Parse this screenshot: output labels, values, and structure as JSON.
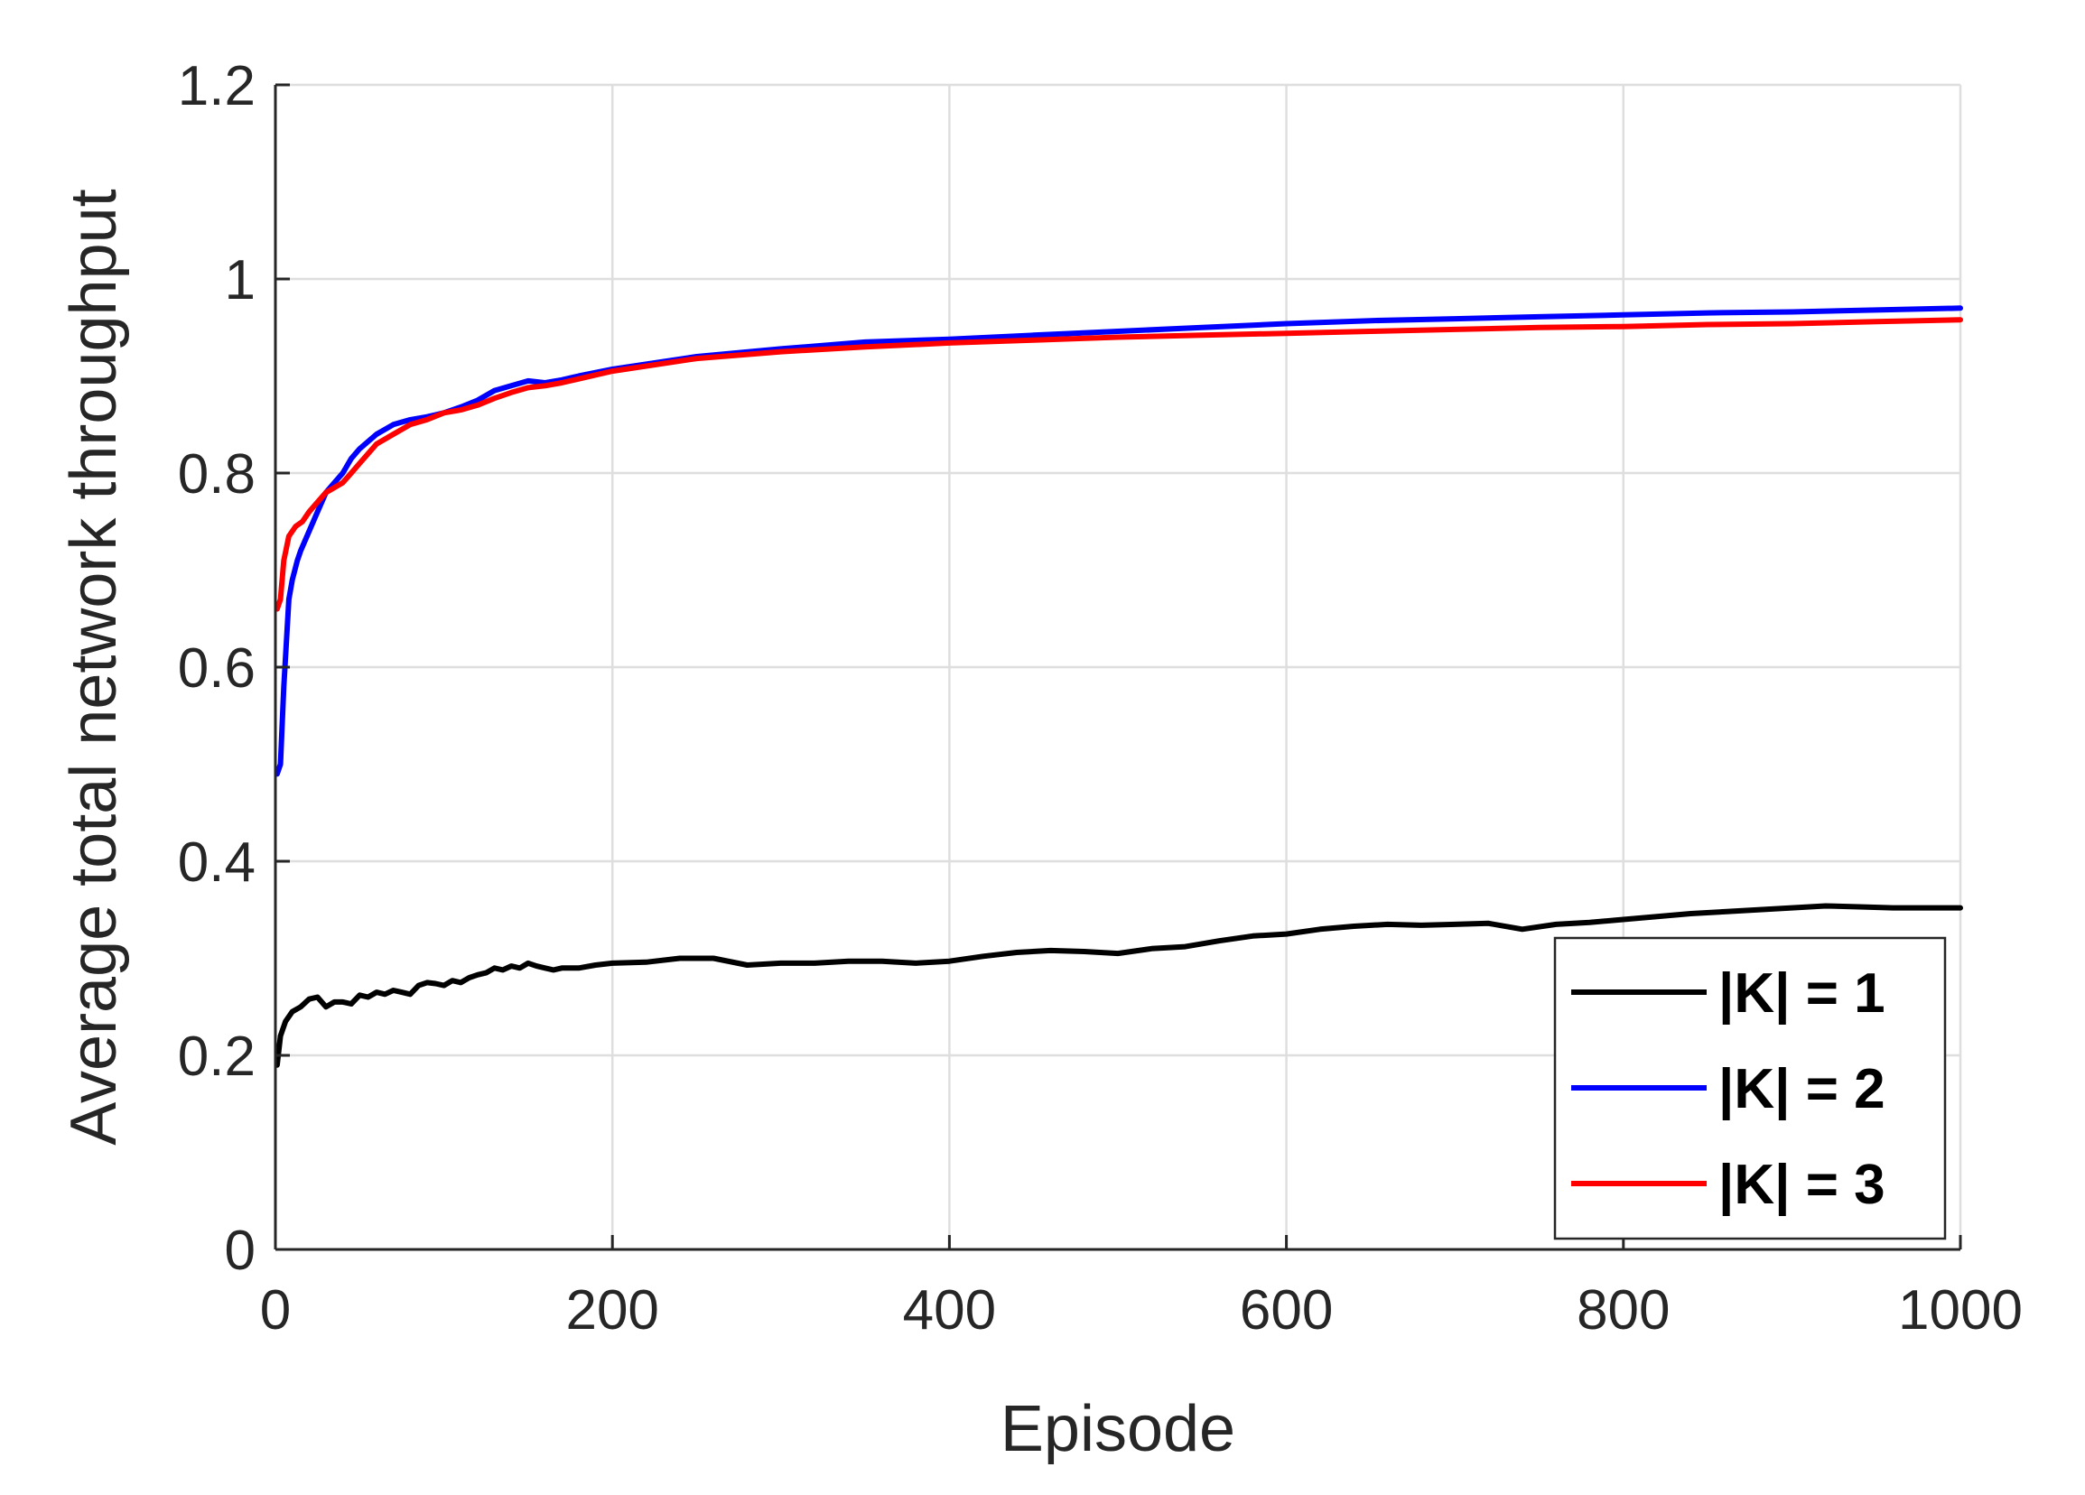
{
  "chart_data": {
    "type": "line",
    "title": "",
    "xlabel": "Episode",
    "ylabel": "Average total network throughput",
    "xlim": [
      0,
      1000
    ],
    "ylim": [
      0,
      1.2
    ],
    "xticks": [
      0,
      200,
      400,
      600,
      800,
      1000
    ],
    "yticks": [
      0,
      0.2,
      0.4,
      0.6,
      0.8,
      1,
      1.2
    ],
    "xtick_labels": [
      "0",
      "200",
      "400",
      "600",
      "800",
      "1000"
    ],
    "ytick_labels": [
      "0",
      "0.2",
      "0.4",
      "0.6",
      "0.8",
      "1",
      "1.2"
    ],
    "grid": true,
    "legend_position": "bottom-right",
    "series": [
      {
        "name": "|K| = 1",
        "color": "#000000",
        "x": [
          1,
          3,
          6,
          10,
          15,
          20,
          25,
          30,
          35,
          40,
          45,
          50,
          55,
          60,
          65,
          70,
          75,
          80,
          85,
          90,
          95,
          100,
          105,
          110,
          115,
          120,
          125,
          130,
          135,
          140,
          145,
          150,
          155,
          160,
          165,
          170,
          180,
          190,
          200,
          220,
          240,
          260,
          280,
          300,
          320,
          340,
          360,
          380,
          400,
          420,
          440,
          460,
          480,
          500,
          520,
          540,
          560,
          580,
          600,
          620,
          640,
          660,
          680,
          700,
          720,
          740,
          760,
          780,
          800,
          820,
          840,
          860,
          880,
          900,
          920,
          940,
          960,
          980,
          1000
        ],
        "values": [
          0.19,
          0.22,
          0.235,
          0.245,
          0.25,
          0.258,
          0.26,
          0.25,
          0.255,
          0.255,
          0.253,
          0.262,
          0.26,
          0.265,
          0.263,
          0.267,
          0.265,
          0.263,
          0.272,
          0.275,
          0.274,
          0.272,
          0.277,
          0.275,
          0.28,
          0.283,
          0.285,
          0.29,
          0.288,
          0.292,
          0.29,
          0.295,
          0.292,
          0.29,
          0.288,
          0.29,
          0.29,
          0.293,
          0.295,
          0.296,
          0.3,
          0.3,
          0.293,
          0.295,
          0.295,
          0.297,
          0.297,
          0.295,
          0.297,
          0.302,
          0.306,
          0.308,
          0.307,
          0.305,
          0.31,
          0.312,
          0.318,
          0.323,
          0.325,
          0.33,
          0.333,
          0.335,
          0.334,
          0.335,
          0.336,
          0.33,
          0.335,
          0.337,
          0.34,
          0.343,
          0.346,
          0.348,
          0.35,
          0.352,
          0.354,
          0.353,
          0.352,
          0.352,
          0.352
        ]
      },
      {
        "name": "|K| = 2",
        "color": "#0000ff",
        "x": [
          1,
          3,
          5,
          8,
          10,
          13,
          15,
          20,
          25,
          30,
          35,
          40,
          45,
          50,
          60,
          70,
          80,
          90,
          95,
          100,
          110,
          120,
          130,
          140,
          150,
          160,
          170,
          180,
          200,
          250,
          300,
          350,
          400,
          450,
          500,
          550,
          600,
          650,
          700,
          750,
          800,
          850,
          900,
          950,
          1000
        ],
        "values": [
          0.49,
          0.5,
          0.58,
          0.67,
          0.69,
          0.71,
          0.72,
          0.74,
          0.76,
          0.78,
          0.79,
          0.8,
          0.815,
          0.825,
          0.84,
          0.85,
          0.855,
          0.858,
          0.86,
          0.862,
          0.868,
          0.875,
          0.885,
          0.89,
          0.895,
          0.893,
          0.896,
          0.9,
          0.907,
          0.92,
          0.928,
          0.935,
          0.938,
          0.942,
          0.946,
          0.95,
          0.954,
          0.957,
          0.959,
          0.961,
          0.963,
          0.965,
          0.966,
          0.968,
          0.97
        ]
      },
      {
        "name": "|K| = 3",
        "color": "#ff0000",
        "x": [
          1,
          3,
          5,
          8,
          12,
          16,
          20,
          25,
          30,
          35,
          40,
          45,
          50,
          60,
          70,
          80,
          90,
          100,
          110,
          120,
          130,
          140,
          150,
          160,
          170,
          180,
          200,
          250,
          300,
          350,
          400,
          450,
          500,
          550,
          600,
          650,
          700,
          750,
          800,
          850,
          900,
          950,
          1000
        ],
        "values": [
          0.66,
          0.67,
          0.71,
          0.735,
          0.745,
          0.75,
          0.76,
          0.77,
          0.78,
          0.785,
          0.79,
          0.8,
          0.81,
          0.83,
          0.84,
          0.85,
          0.855,
          0.862,
          0.865,
          0.87,
          0.877,
          0.883,
          0.888,
          0.89,
          0.893,
          0.897,
          0.905,
          0.918,
          0.925,
          0.93,
          0.934,
          0.937,
          0.94,
          0.942,
          0.944,
          0.946,
          0.948,
          0.95,
          0.951,
          0.953,
          0.954,
          0.956,
          0.958
        ]
      }
    ]
  }
}
